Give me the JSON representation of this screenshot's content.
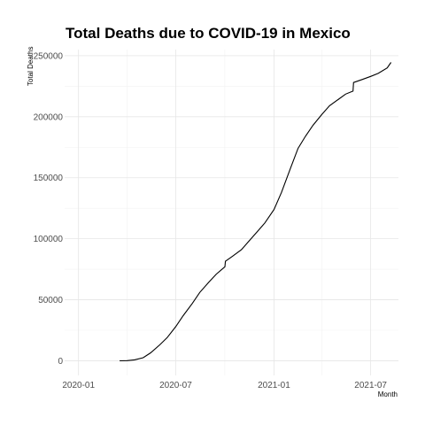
{
  "chart_data": {
    "type": "line",
    "title": "Total Deaths due to COVID-19 in Mexico",
    "xlabel": "Month",
    "ylabel": "Total Deaths",
    "x_tick_labels": [
      "2020-01",
      "2020-07",
      "2021-01",
      "2021-07"
    ],
    "x_ticks": [
      "2020-01-01",
      "2020-07-01",
      "2021-01-01",
      "2021-07-01"
    ],
    "x_minor_ticks": [
      "2020-04-01",
      "2020-10-01",
      "2021-04-01"
    ],
    "y_tick_labels": [
      "0",
      "50000",
      "100000",
      "150000",
      "200000",
      "250000"
    ],
    "y_ticks": [
      0,
      50000,
      100000,
      150000,
      200000,
      250000
    ],
    "xlim": [
      "2019-12-06",
      "2021-08-22"
    ],
    "ylim": [
      -12000,
      255000
    ],
    "grid": true,
    "series": [
      {
        "x": [
          "2020-03-18",
          "2020-04-01",
          "2020-04-15",
          "2020-05-01",
          "2020-05-15",
          "2020-06-01",
          "2020-06-15",
          "2020-07-01",
          "2020-07-15",
          "2020-08-01",
          "2020-08-15",
          "2020-09-01",
          "2020-09-15",
          "2020-10-01",
          "2020-10-02",
          "2020-10-15",
          "2020-11-01",
          "2020-11-15",
          "2020-12-01",
          "2020-12-15",
          "2021-01-01",
          "2021-01-15",
          "2021-02-01",
          "2021-02-15",
          "2021-03-01",
          "2021-03-15",
          "2021-04-01",
          "2021-04-15",
          "2021-05-01",
          "2021-05-15",
          "2021-05-29",
          "2021-05-30",
          "2021-06-15",
          "2021-07-01",
          "2021-07-15",
          "2021-08-01",
          "2021-08-08"
        ],
        "y": [
          0,
          100,
          800,
          2500,
          6500,
          13000,
          19000,
          28000,
          37000,
          47000,
          56000,
          64500,
          71000,
          77000,
          81500,
          85500,
          91000,
          98000,
          106000,
          113000,
          124000,
          138000,
          158000,
          174000,
          184000,
          193000,
          202000,
          209000,
          214000,
          218500,
          221000,
          228000,
          230500,
          233000,
          235500,
          240000,
          244500
        ]
      }
    ]
  }
}
